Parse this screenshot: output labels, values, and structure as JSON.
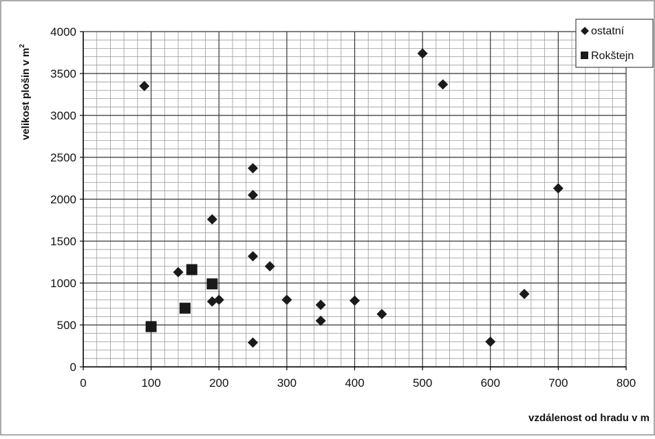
{
  "chart_data": {
    "type": "scatter",
    "xlabel": "vzdálenost od hradu v m",
    "ylabel_main": "velikost plošin v m",
    "ylabel_sup": "2",
    "xlim": [
      0,
      800
    ],
    "ylim": [
      0,
      4000
    ],
    "x_major_ticks": [
      "0",
      "100",
      "200",
      "300",
      "400",
      "500",
      "600",
      "700",
      "800"
    ],
    "y_major_ticks": [
      "0",
      "500",
      "1000",
      "1500",
      "2000",
      "2500",
      "3000",
      "3500",
      "4000"
    ],
    "grid": true,
    "legend_position": "top-right",
    "series": [
      {
        "name": "ostatní",
        "marker": "diamond",
        "color": "#1a1a1a",
        "points": [
          [
            90,
            3350
          ],
          [
            140,
            1130
          ],
          [
            190,
            1760
          ],
          [
            190,
            780
          ],
          [
            200,
            800
          ],
          [
            250,
            2370
          ],
          [
            250,
            2050
          ],
          [
            250,
            1320
          ],
          [
            250,
            290
          ],
          [
            275,
            1200
          ],
          [
            300,
            800
          ],
          [
            350,
            740
          ],
          [
            350,
            550
          ],
          [
            400,
            790
          ],
          [
            440,
            630
          ],
          [
            500,
            3740
          ],
          [
            530,
            3370
          ],
          [
            600,
            300
          ],
          [
            650,
            870
          ],
          [
            700,
            2130
          ]
        ]
      },
      {
        "name": "Rokštejn",
        "marker": "square",
        "color": "#1a1a1a",
        "points": [
          [
            100,
            480
          ],
          [
            150,
            700
          ],
          [
            160,
            1160
          ],
          [
            190,
            990
          ]
        ]
      }
    ]
  }
}
